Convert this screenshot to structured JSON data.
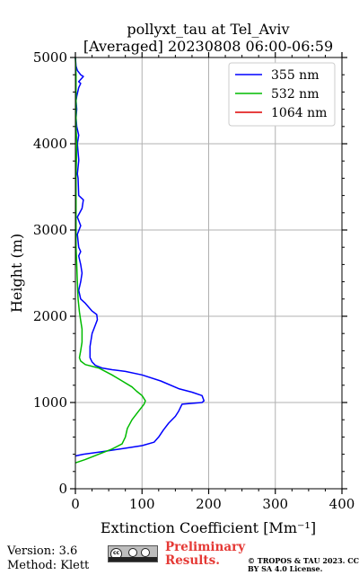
{
  "chart_data": {
    "type": "line",
    "title": "pollyxt_tau at Tel_Aviv",
    "subtitle": "[Averaged] 20230808 06:00-06:59",
    "xlabel": "Extinction Coefficient [Mm⁻¹]",
    "ylabel": "Height (m)",
    "xlim": [
      0,
      400
    ],
    "ylim": [
      0,
      5000
    ],
    "xticks": [
      0,
      100,
      200,
      300,
      400
    ],
    "yticks": [
      0,
      1000,
      2000,
      3000,
      4000,
      5000
    ],
    "grid": true,
    "legend_position": "top-right",
    "series": [
      {
        "name": "355 nm",
        "color": "#0000ff",
        "x": [
          0,
          12,
          40,
          75,
          100,
          118,
          125,
          132,
          140,
          150,
          155,
          160,
          190,
          193,
          190,
          175,
          155,
          128,
          100,
          75,
          55,
          40,
          30,
          25,
          22,
          22,
          25,
          30,
          33,
          32,
          25,
          15,
          8,
          5,
          8,
          10,
          8,
          5,
          8,
          5,
          3,
          8,
          3,
          10,
          12,
          5,
          4,
          3,
          5,
          5,
          3,
          5,
          2,
          1,
          2,
          1,
          2,
          5,
          8,
          5,
          12,
          8,
          3,
          1,
          0
        ],
        "y": [
          380,
          400,
          430,
          470,
          500,
          540,
          600,
          680,
          760,
          840,
          900,
          980,
          1000,
          1020,
          1080,
          1120,
          1160,
          1250,
          1320,
          1360,
          1380,
          1400,
          1430,
          1470,
          1520,
          1650,
          1800,
          1900,
          1960,
          2020,
          2060,
          2150,
          2200,
          2300,
          2400,
          2500,
          2600,
          2700,
          2750,
          2800,
          2950,
          3050,
          3150,
          3250,
          3350,
          3400,
          3600,
          3650,
          3800,
          3820,
          4000,
          4100,
          4200,
          4300,
          4400,
          4500,
          4550,
          4650,
          4700,
          4720,
          4780,
          4800,
          4850,
          4900,
          5000
        ]
      },
      {
        "name": "532 nm",
        "color": "#00bb00",
        "x": [
          0,
          15,
          35,
          55,
          70,
          75,
          78,
          85,
          95,
          103,
          105,
          100,
          92,
          85,
          70,
          55,
          35,
          15,
          8,
          6,
          8,
          10,
          10,
          8,
          6,
          4,
          3,
          2,
          1,
          1,
          1,
          2,
          1,
          1,
          1,
          0
        ],
        "y": [
          300,
          340,
          400,
          460,
          520,
          600,
          700,
          800,
          900,
          980,
          1020,
          1080,
          1130,
          1180,
          1250,
          1320,
          1400,
          1440,
          1480,
          1520,
          1600,
          1700,
          1850,
          1950,
          2050,
          2200,
          2400,
          2600,
          2800,
          3200,
          3600,
          4000,
          4200,
          4500,
          4800,
          5000
        ]
      },
      {
        "name": "1064 nm",
        "color": "#dd0000",
        "x": [],
        "y": []
      }
    ]
  },
  "footer": {
    "version": "Version: 3.6",
    "method": "Method: Klett",
    "preliminary": "Preliminary Results.",
    "copyright": "© TROPOS & TAU 2023. CC BY SA 4.0 License.",
    "license_logo_text": "cc"
  }
}
